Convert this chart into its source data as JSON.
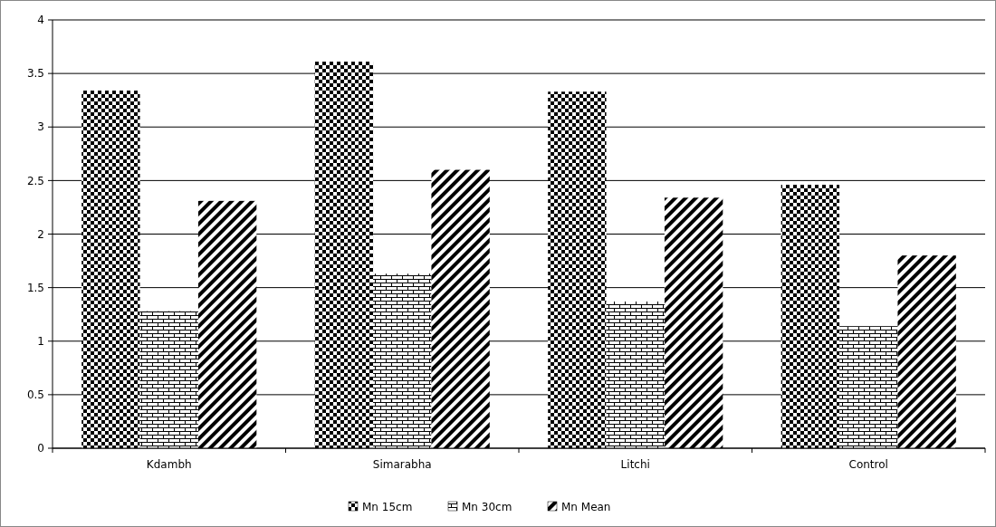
{
  "chart_data": {
    "type": "bar",
    "categories": [
      "Kdambh",
      "Simarabha",
      "Litchi",
      "Control"
    ],
    "series": [
      {
        "name": "Mn 15cm",
        "color": "#000000",
        "values": [
          3.34,
          3.61,
          3.33,
          2.46
        ]
      },
      {
        "name": "Mn 30cm",
        "color": "#000000",
        "values": [
          1.28,
          1.63,
          1.37,
          1.14
        ]
      },
      {
        "name": "Mn Mean",
        "color": "#000000",
        "values": [
          2.31,
          2.6,
          2.34,
          1.8
        ]
      }
    ],
    "ylim": [
      0,
      4
    ],
    "yticks": [
      0,
      0.5,
      1,
      1.5,
      2,
      2.5,
      3,
      3.5,
      4
    ],
    "grid": "y",
    "legend": "bottom"
  }
}
